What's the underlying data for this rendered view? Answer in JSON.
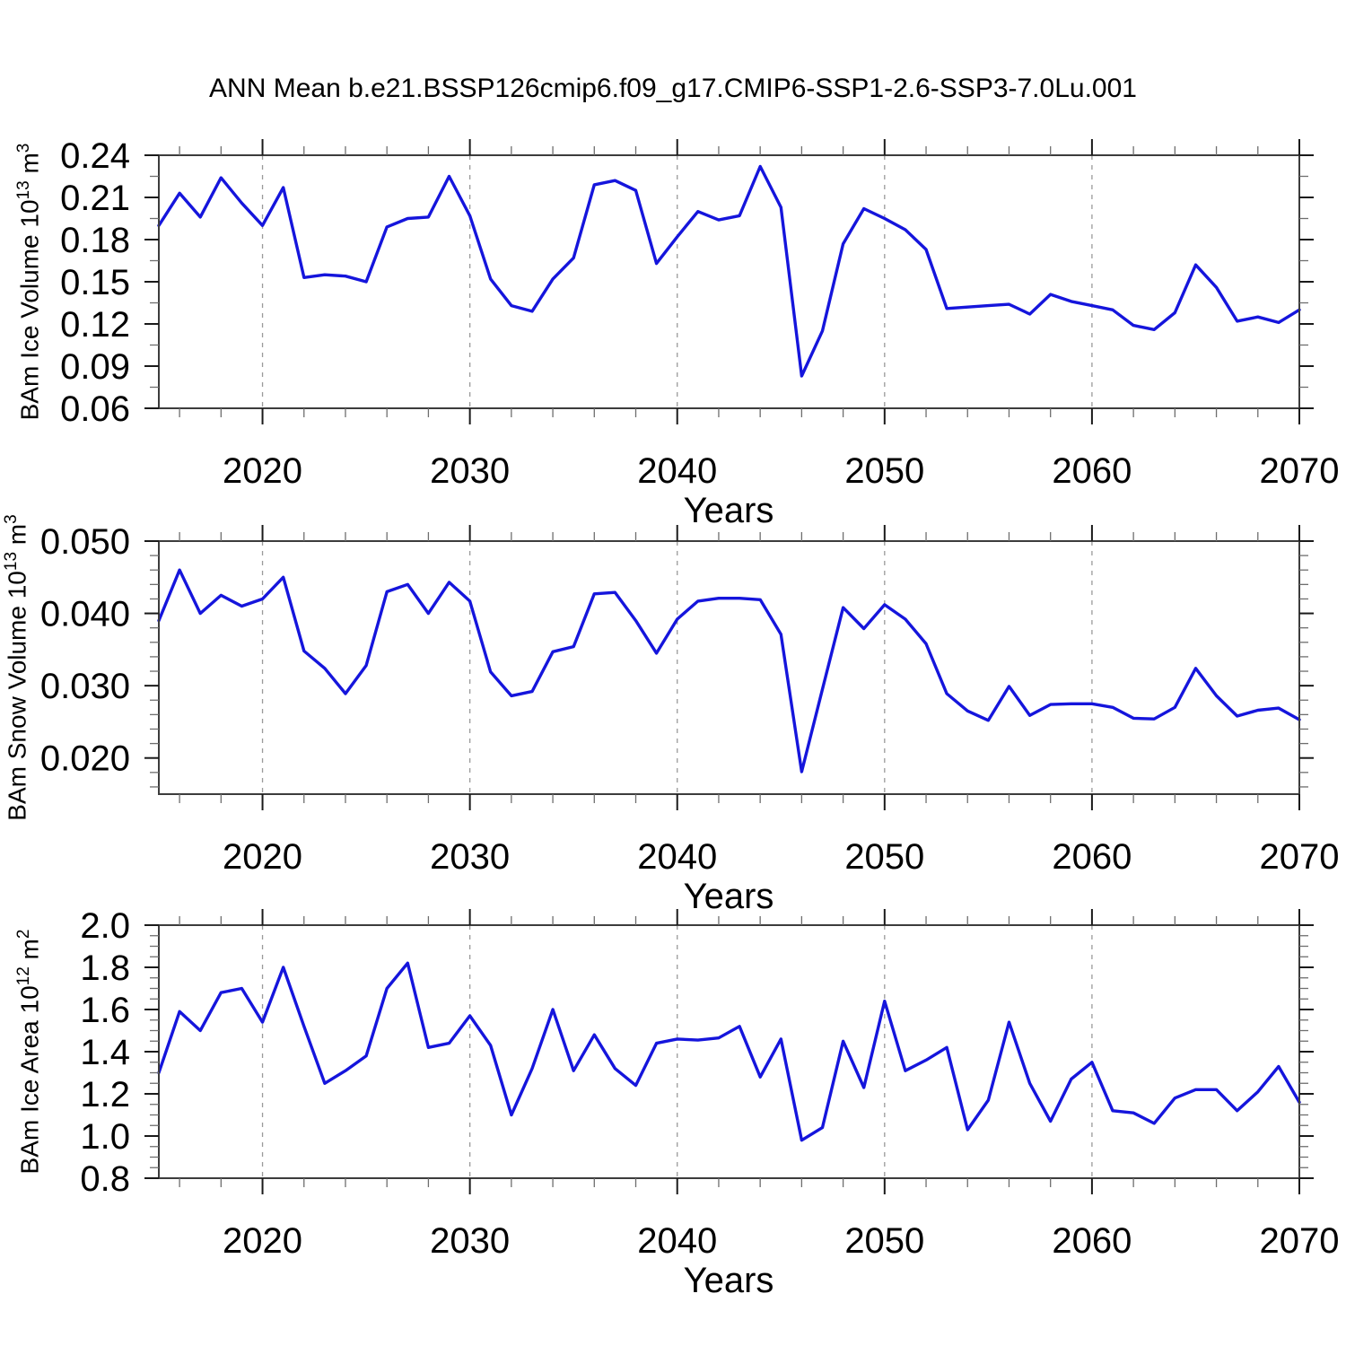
{
  "title": "ANN Mean b.e21.BSSP126cmip6.f09_g17.CMIP6-SSP1-2.6-SSP3-7.0Lu.001",
  "colors": {
    "line": "#1515dc",
    "frame": "#3c3c3c",
    "major_tick": "#1a1a1a",
    "minor_tick": "#6e6e6e",
    "grid": "#9a9a9a",
    "text": "#000000"
  },
  "chart_data": {
    "type": "line",
    "xlabel": "Years",
    "x": [
      2015,
      2016,
      2017,
      2018,
      2019,
      2020,
      2021,
      2022,
      2023,
      2024,
      2025,
      2026,
      2027,
      2028,
      2029,
      2030,
      2031,
      2032,
      2033,
      2034,
      2035,
      2036,
      2037,
      2038,
      2039,
      2040,
      2041,
      2042,
      2043,
      2044,
      2045,
      2046,
      2047,
      2048,
      2049,
      2050,
      2051,
      2052,
      2053,
      2054,
      2055,
      2056,
      2057,
      2058,
      2059,
      2060,
      2061,
      2062,
      2063,
      2064,
      2065,
      2066,
      2067,
      2068,
      2069,
      2070
    ],
    "x_range": [
      2015,
      2070
    ],
    "x_major_ticks": [
      2020,
      2030,
      2040,
      2050,
      2060,
      2070
    ],
    "x_major_tick_labels": [
      "2020",
      "2030",
      "2040",
      "2050",
      "2060",
      "2070"
    ],
    "x_minor_tick_step": 2,
    "grid_years": [
      2020,
      2030,
      2040,
      2050,
      2060
    ],
    "grid_style": "dashed",
    "legend": "none",
    "panels": [
      {
        "name": "ice-volume",
        "ylabel": {
          "main": "BAm Ice Volume 10",
          "exp": "13",
          "unit": " m",
          "unit_exp": "3"
        },
        "ylim": [
          0.06,
          0.24
        ],
        "ytick_values": [
          0.06,
          0.09,
          0.12,
          0.15,
          0.18,
          0.21,
          0.24
        ],
        "ytick_labels": [
          "0.06",
          "0.09",
          "0.12",
          "0.15",
          "0.18",
          "0.21",
          "0.24"
        ],
        "y_minor_step": 0.015,
        "values": [
          0.19,
          0.213,
          0.196,
          0.224,
          0.206,
          0.19,
          0.217,
          0.153,
          0.155,
          0.154,
          0.15,
          0.189,
          0.195,
          0.196,
          0.225,
          0.197,
          0.152,
          0.133,
          0.129,
          0.152,
          0.167,
          0.219,
          0.222,
          0.215,
          0.163,
          0.182,
          0.2,
          0.194,
          0.197,
          0.232,
          0.203,
          0.083,
          0.115,
          0.177,
          0.202,
          0.195,
          0.187,
          0.173,
          0.131,
          0.132,
          0.133,
          0.134,
          0.127,
          0.141,
          0.136,
          0.133,
          0.13,
          0.119,
          0.116,
          0.128,
          0.162,
          0.146,
          0.122,
          0.125,
          0.121,
          0.13
        ]
      },
      {
        "name": "snow-volume",
        "ylabel": {
          "main": "BAm Snow Volume 10",
          "exp": "13",
          "unit": " m",
          "unit_exp": "3"
        },
        "ylim": [
          0.015,
          0.05
        ],
        "ytick_values": [
          0.02,
          0.03,
          0.04,
          0.05
        ],
        "ytick_labels": [
          "0.020",
          "0.030",
          "0.040",
          "0.050"
        ],
        "y_minor_step": 0.002,
        "values": [
          0.039,
          0.046,
          0.04,
          0.0425,
          0.041,
          0.042,
          0.045,
          0.0348,
          0.0324,
          0.0289,
          0.0328,
          0.043,
          0.044,
          0.04,
          0.0443,
          0.0417,
          0.0319,
          0.0286,
          0.0292,
          0.0347,
          0.0354,
          0.0427,
          0.0429,
          0.039,
          0.0345,
          0.0392,
          0.0417,
          0.0421,
          0.0421,
          0.0419,
          0.0371,
          0.0181,
          0.0295,
          0.0408,
          0.0379,
          0.0412,
          0.0392,
          0.0358,
          0.0289,
          0.0265,
          0.0252,
          0.0299,
          0.0259,
          0.0274,
          0.0275,
          0.0275,
          0.027,
          0.0255,
          0.0254,
          0.027,
          0.0324,
          0.0286,
          0.0258,
          0.0266,
          0.0269,
          0.0253
        ]
      },
      {
        "name": "ice-area",
        "ylabel": {
          "main": "BAm Ice Area 10",
          "exp": "12",
          "unit": " m",
          "unit_exp": "2"
        },
        "ylim": [
          0.8,
          2.0
        ],
        "ytick_values": [
          0.8,
          1.0,
          1.2,
          1.4,
          1.6,
          1.8,
          2.0
        ],
        "ytick_labels": [
          "0.8",
          "1.0",
          "1.2",
          "1.4",
          "1.6",
          "1.8",
          "2.0"
        ],
        "y_minor_step": 0.05,
        "values": [
          1.3,
          1.59,
          1.5,
          1.68,
          1.7,
          1.54,
          1.8,
          1.52,
          1.25,
          1.31,
          1.38,
          1.7,
          1.82,
          1.42,
          1.44,
          1.57,
          1.43,
          1.1,
          1.32,
          1.6,
          1.31,
          1.48,
          1.32,
          1.24,
          1.44,
          1.46,
          1.455,
          1.465,
          1.52,
          1.28,
          1.46,
          0.98,
          1.04,
          1.45,
          1.23,
          1.64,
          1.31,
          1.36,
          1.42,
          1.03,
          1.17,
          1.54,
          1.25,
          1.07,
          1.27,
          1.35,
          1.12,
          1.11,
          1.06,
          1.18,
          1.22,
          1.22,
          1.12,
          1.21,
          1.33,
          1.16
        ]
      }
    ]
  }
}
